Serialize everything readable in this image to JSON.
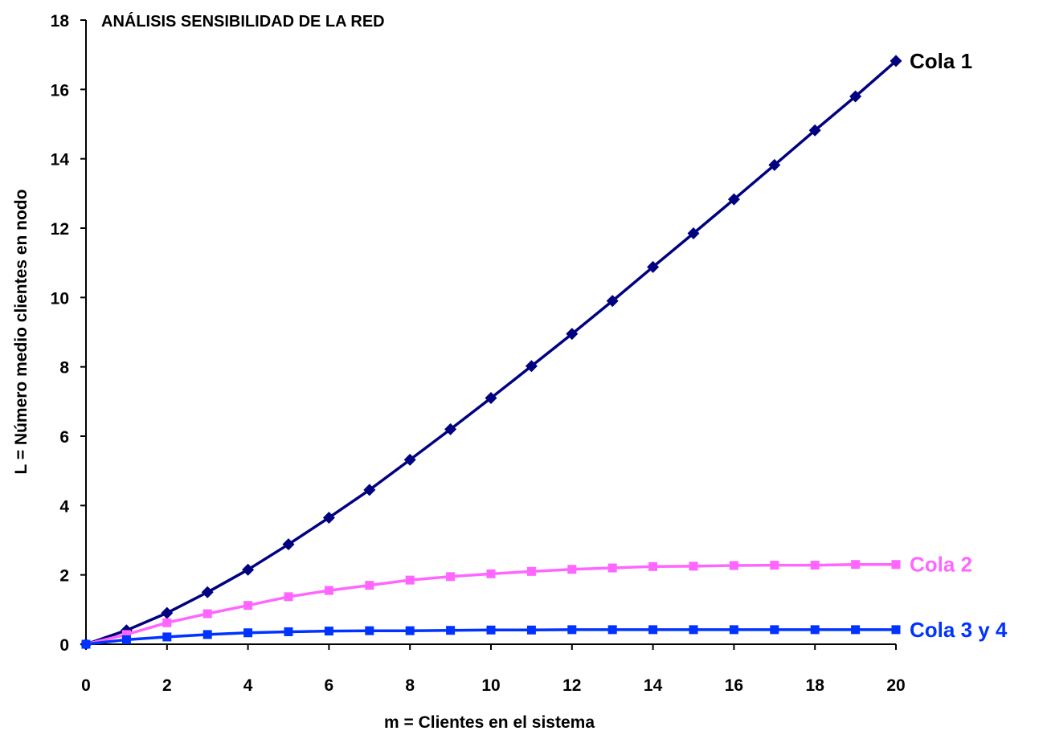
{
  "chart_data": {
    "type": "line",
    "title": "ANÁLISIS SENSIBILIDAD DE LA RED",
    "xlabel": "m = Clientes en el sistema",
    "ylabel": "L = Número medio clientes en  nodo",
    "xlim": [
      0,
      20
    ],
    "ylim": [
      0,
      18
    ],
    "xticks": [
      0,
      2,
      4,
      6,
      8,
      10,
      12,
      14,
      16,
      18,
      20
    ],
    "yticks": [
      0,
      2,
      4,
      6,
      8,
      10,
      12,
      14,
      16,
      18
    ],
    "grid": false,
    "legend": "inline labels at line ends",
    "x": [
      0,
      1,
      2,
      3,
      4,
      5,
      6,
      7,
      8,
      9,
      10,
      11,
      12,
      13,
      14,
      15,
      16,
      17,
      18,
      19,
      20
    ],
    "series": [
      {
        "name": "Cola 1",
        "color": "#000080",
        "marker": "diamond",
        "values": [
          0,
          0.4,
          0.9,
          1.5,
          2.15,
          2.88,
          3.65,
          4.45,
          5.32,
          6.2,
          7.1,
          8.02,
          8.95,
          9.9,
          10.88,
          11.85,
          12.83,
          13.82,
          14.82,
          15.8,
          16.82
        ]
      },
      {
        "name": "Cola 2",
        "color": "#ff66ff",
        "marker": "square",
        "values": [
          0,
          0.28,
          0.62,
          0.88,
          1.12,
          1.37,
          1.55,
          1.7,
          1.85,
          1.95,
          2.03,
          2.1,
          2.16,
          2.2,
          2.24,
          2.25,
          2.27,
          2.28,
          2.28,
          2.3,
          2.3
        ]
      },
      {
        "name": "Cola 3 y 4",
        "color": "#0033ff",
        "marker": "square",
        "values": [
          0,
          0.13,
          0.21,
          0.28,
          0.33,
          0.36,
          0.38,
          0.39,
          0.39,
          0.4,
          0.41,
          0.41,
          0.42,
          0.42,
          0.42,
          0.42,
          0.42,
          0.42,
          0.42,
          0.42,
          0.42
        ]
      }
    ]
  }
}
